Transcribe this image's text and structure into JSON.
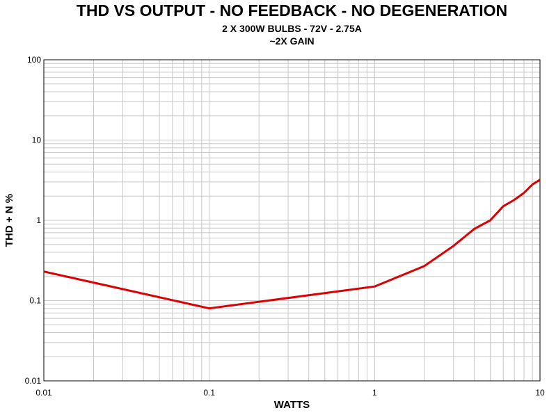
{
  "chart_data": {
    "type": "line",
    "title": "THD VS OUTPUT - NO FEEDBACK - NO DEGENERATION",
    "subtitle_lines": [
      "2 X 300W BULBS - 72V - 2.75A",
      "~2X GAIN"
    ],
    "xlabel": "WATTS",
    "ylabel": "THD + N %",
    "xscale": "log",
    "yscale": "log",
    "xlim": [
      0.01,
      10
    ],
    "ylim": [
      0.01,
      100
    ],
    "x_ticks": [
      "0.01",
      "0.1",
      "1",
      "10"
    ],
    "y_ticks": [
      "0.01",
      "0.1",
      "1",
      "10",
      "100"
    ],
    "grid": true,
    "line_color": "#dd0000",
    "series": [
      {
        "x": [
          0.01,
          0.1,
          1,
          2,
          3,
          4,
          5,
          6,
          7,
          8,
          9,
          10
        ],
        "y": [
          0.23,
          0.08,
          0.15,
          0.27,
          0.48,
          0.78,
          1.0,
          1.5,
          1.8,
          2.2,
          2.8,
          3.2
        ]
      }
    ]
  }
}
